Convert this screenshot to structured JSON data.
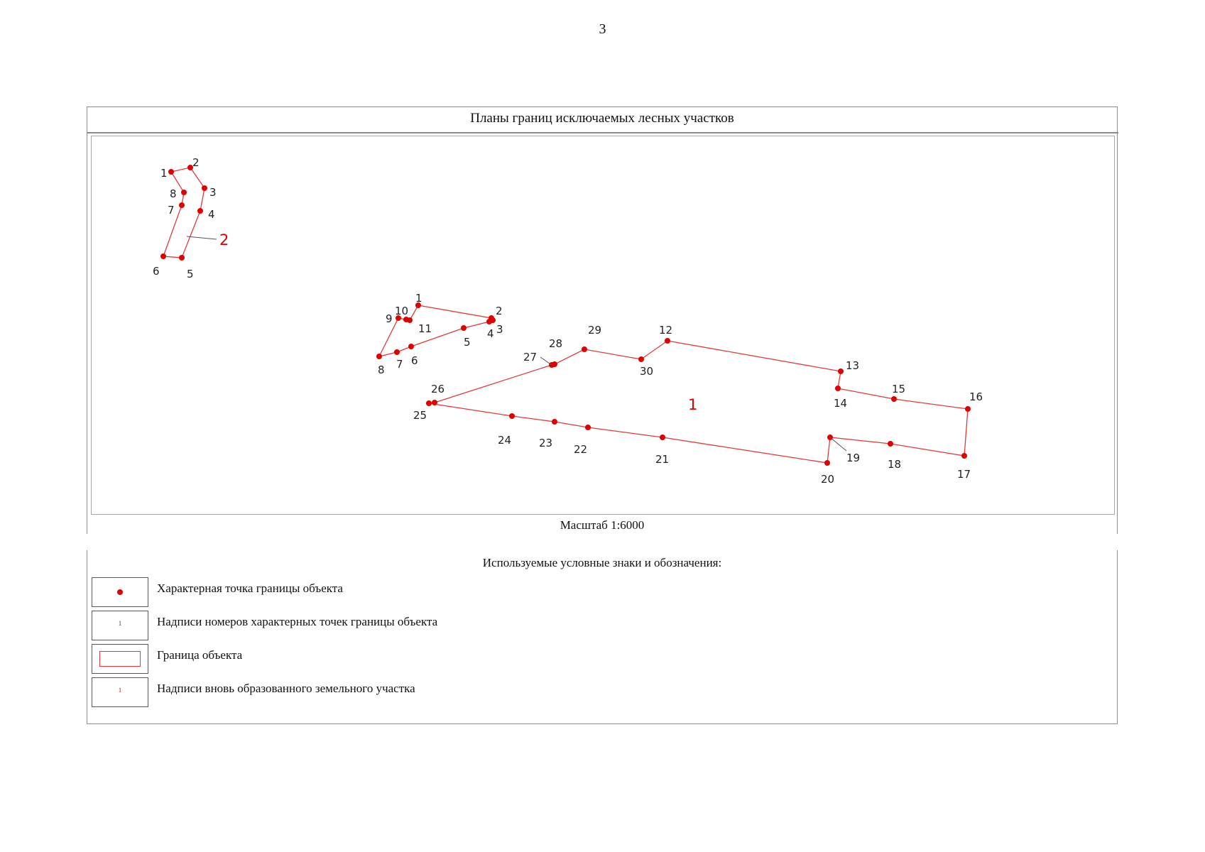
{
  "page_number": "3",
  "plan": {
    "title": "Планы границ исключаемых лесных участков",
    "scale": "Масштаб 1:6000"
  },
  "colors": {
    "boundary": "#e53838",
    "point": "#e00000",
    "frame": "#8c8c8c"
  },
  "map": {
    "parcels": [
      {
        "id": "2",
        "label": "2",
        "points": [
          "1",
          "2",
          "3",
          "4",
          "5",
          "6",
          "7",
          "8"
        ]
      },
      {
        "id": "1a",
        "label": "",
        "points": [
          "1",
          "2",
          "3",
          "4",
          "5",
          "6",
          "7",
          "8",
          "9",
          "10",
          "11"
        ]
      },
      {
        "id": "1b",
        "label": "1",
        "points": [
          "12",
          "13",
          "14",
          "15",
          "16",
          "17",
          "18",
          "19",
          "20",
          "21",
          "22",
          "23",
          "24",
          "25",
          "26",
          "27",
          "28",
          "29",
          "30"
        ]
      }
    ]
  },
  "legend": {
    "title": "Используемые условные знаки и обозначения:",
    "items": [
      {
        "symbol": "point",
        "label": "Характерная точка границы объекта"
      },
      {
        "symbol": "point-number",
        "sample": "1",
        "label": "Надписи номеров характерных точек границы объекта"
      },
      {
        "symbol": "boundary",
        "label": "Граница объекта"
      },
      {
        "symbol": "parcel-number",
        "sample": "1",
        "label": "Надписи вновь образованного земельного участка"
      }
    ]
  }
}
